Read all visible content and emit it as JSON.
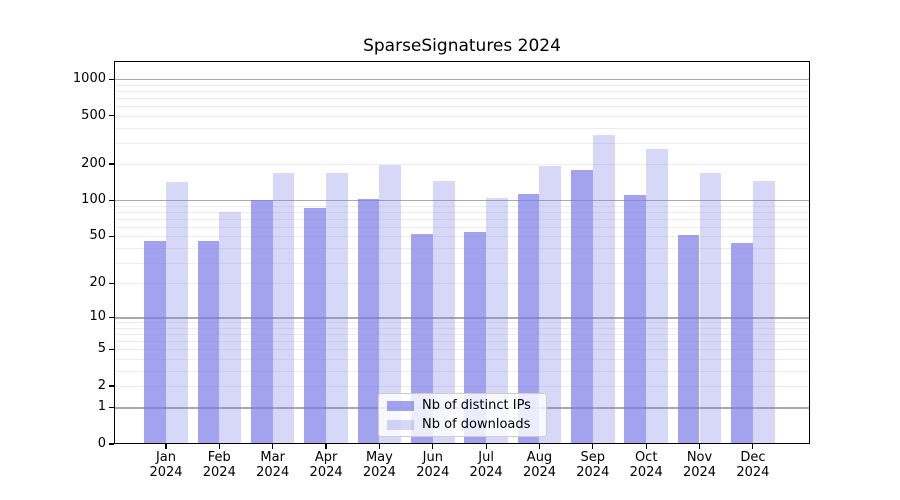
{
  "title": "SparseSignatures 2024",
  "colors": {
    "bar_base": "#7a7ae7",
    "ips_fill": "rgba(122,122,231,0.7)",
    "downloads_fill": "rgba(122,122,231,0.3)",
    "grid_major": "#a9a9a9",
    "grid_minor": "#ececec",
    "axis_frame": "#000000",
    "legend_border": "#cccccc",
    "legend_bg": "rgba(255,255,255,0.8)",
    "text": "#000000"
  },
  "legend": {
    "items": [
      {
        "label": "Nb of distinct IPs",
        "color_key": "ips_fill"
      },
      {
        "label": "Nb of downloads",
        "color_key": "downloads_fill"
      }
    ]
  },
  "axes": {
    "y_ticks": [
      {
        "value": 0,
        "label": "0"
      },
      {
        "value": 1,
        "label": "1"
      },
      {
        "value": 2,
        "label": "2"
      },
      {
        "value": 5,
        "label": "5"
      },
      {
        "value": 10,
        "label": "10"
      },
      {
        "value": 20,
        "label": "20"
      },
      {
        "value": 50,
        "label": "50"
      },
      {
        "value": 100,
        "label": "100"
      },
      {
        "value": 200,
        "label": "200"
      },
      {
        "value": 500,
        "label": "500"
      },
      {
        "value": 1000,
        "label": "1000"
      }
    ],
    "x_ticks": [
      {
        "month": "Jan",
        "year": "2024"
      },
      {
        "month": "Feb",
        "year": "2024"
      },
      {
        "month": "Mar",
        "year": "2024"
      },
      {
        "month": "Apr",
        "year": "2024"
      },
      {
        "month": "May",
        "year": "2024"
      },
      {
        "month": "Jun",
        "year": "2024"
      },
      {
        "month": "Jul",
        "year": "2024"
      },
      {
        "month": "Aug",
        "year": "2024"
      },
      {
        "month": "Sep",
        "year": "2024"
      },
      {
        "month": "Oct",
        "year": "2024"
      },
      {
        "month": "Nov",
        "year": "2024"
      },
      {
        "month": "Dec",
        "year": "2024"
      }
    ]
  },
  "chart_data": {
    "type": "bar",
    "title": "SparseSignatures 2024",
    "categories": [
      "Jan 2024",
      "Feb 2024",
      "Mar 2024",
      "Apr 2024",
      "May 2024",
      "Jun 2024",
      "Jul 2024",
      "Aug 2024",
      "Sep 2024",
      "Oct 2024",
      "Nov 2024",
      "Dec 2024"
    ],
    "series": [
      {
        "name": "Nb of distinct IPs",
        "values": [
          46,
          46,
          100,
          87,
          103,
          52,
          54,
          113,
          180,
          110,
          51,
          44
        ]
      },
      {
        "name": "Nb of downloads",
        "values": [
          141,
          80,
          169,
          167,
          195,
          145,
          104,
          192,
          350,
          268,
          169,
          145
        ]
      }
    ],
    "xlabel": "",
    "ylabel": "",
    "y_scale": "log1p",
    "y_ticks": [
      0,
      1,
      2,
      5,
      10,
      20,
      50,
      100,
      200,
      500,
      1000
    ],
    "y_grid_major": [
      1,
      10,
      100,
      1000
    ],
    "ylim": [
      0,
      1400
    ],
    "grid": true,
    "legend_position": "lower-center"
  }
}
